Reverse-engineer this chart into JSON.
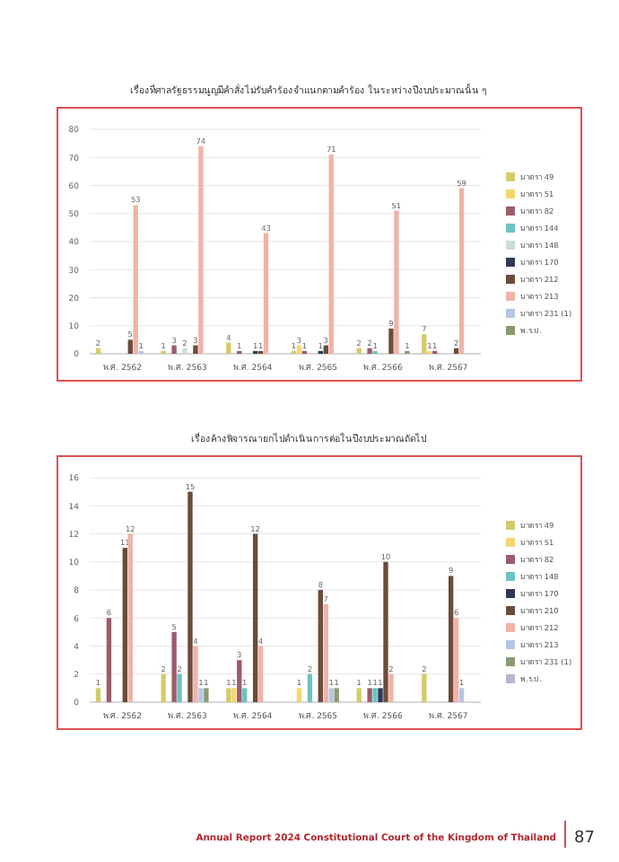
{
  "chart_data": [
    {
      "type": "bar",
      "title": "เรื่องที่ศาลรัฐธรรมนูญมีคำสั่งไม่รับคำร้องจำแนกตามคำร้อง ในระหว่างปีงบประมาณนั้น ๆ",
      "categories": [
        "พ.ศ. 2562",
        "พ.ศ. 2563",
        "พ.ศ. 2564",
        "พ.ศ. 2565",
        "พ.ศ. 2566",
        "พ.ศ. 2567"
      ],
      "ylim": [
        0,
        80
      ],
      "yticks": [
        0,
        10,
        20,
        30,
        40,
        50,
        60,
        70,
        80
      ],
      "grid": "y",
      "legend": "right",
      "data_labels": true,
      "series": [
        {
          "name": "มาตรา 49",
          "color": "#d4cc6a",
          "values": [
            2,
            1,
            4,
            1,
            2,
            7
          ]
        },
        {
          "name": "มาตรา 51",
          "color": "#f5d76e",
          "values": [
            null,
            null,
            null,
            3,
            null,
            1
          ]
        },
        {
          "name": "มาตรา 82",
          "color": "#9c5c6a",
          "values": [
            null,
            3,
            1,
            1,
            2,
            1
          ]
        },
        {
          "name": "มาตรา 144",
          "color": "#6cc3c4",
          "values": [
            null,
            null,
            null,
            null,
            1,
            null
          ]
        },
        {
          "name": "มาตรา 148",
          "color": "#c9ddd6",
          "values": [
            null,
            2,
            null,
            null,
            null,
            null
          ]
        },
        {
          "name": "มาตรา 170",
          "color": "#2e3a55",
          "values": [
            null,
            null,
            1,
            1,
            null,
            null
          ]
        },
        {
          "name": "มาตรา 212",
          "color": "#6b4c3b",
          "values": [
            5,
            3,
            1,
            3,
            9,
            2
          ]
        },
        {
          "name": "มาตรา 213",
          "color": "#f0b3a8",
          "values": [
            53,
            74,
            43,
            71,
            51,
            59
          ]
        },
        {
          "name": "มาตรา 231 (1)",
          "color": "#b4c6e4",
          "values": [
            1,
            null,
            null,
            null,
            null,
            null
          ]
        },
        {
          "name": "พ.ร.ป.",
          "color": "#8a9a70",
          "values": [
            null,
            null,
            null,
            null,
            1,
            null
          ]
        }
      ]
    },
    {
      "type": "bar",
      "title": "เรื่องค้างพิจารณายกไปดำเนินการต่อในปีงบประมาณถัดไป",
      "categories": [
        "พ.ศ. 2562",
        "พ.ศ. 2563",
        "พ.ศ. 2564",
        "พ.ศ. 2565",
        "พ.ศ. 2566",
        "พ.ศ. 2567"
      ],
      "ylim": [
        0,
        16
      ],
      "yticks": [
        0,
        2,
        4,
        6,
        8,
        10,
        12,
        14,
        16
      ],
      "grid": "y",
      "legend": "right",
      "data_labels": true,
      "annotations": [
        "Annual Report 2024 Constitutional Court of the Kingdom of Thailand",
        "87"
      ],
      "series": [
        {
          "name": "มาตรา 49",
          "color": "#d4cc6a",
          "values": [
            1,
            2,
            1,
            null,
            1,
            2
          ]
        },
        {
          "name": "มาตรา 51",
          "color": "#f5d76e",
          "values": [
            null,
            null,
            1,
            1,
            null,
            null
          ]
        },
        {
          "name": "มาตรา 82",
          "color": "#9c5c6a",
          "values": [
            6,
            5,
            3,
            null,
            1,
            null
          ]
        },
        {
          "name": "มาตรา 148",
          "color": "#6cc3c4",
          "values": [
            null,
            2,
            1,
            2,
            1,
            null
          ]
        },
        {
          "name": "มาตรา 170",
          "color": "#2e3a55",
          "values": [
            null,
            null,
            null,
            null,
            1,
            null
          ]
        },
        {
          "name": "มาตรา 210",
          "color": "#6b4c3b",
          "values": [
            11,
            15,
            12,
            8,
            10,
            9
          ]
        },
        {
          "name": "มาตรา 212",
          "color": "#f0b3a8",
          "values": [
            12,
            4,
            4,
            7,
            2,
            6
          ]
        },
        {
          "name": "มาตรา 213",
          "color": "#b4c6e4",
          "values": [
            null,
            1,
            null,
            1,
            null,
            1
          ]
        },
        {
          "name": "มาตรา 231 (1)",
          "color": "#8a9a70",
          "values": [
            null,
            1,
            null,
            1,
            null,
            null
          ]
        },
        {
          "name": "พ.ร.ป.",
          "color": "#bdb3cf",
          "values": [
            null,
            null,
            null,
            null,
            null,
            null
          ]
        }
      ]
    }
  ]
}
